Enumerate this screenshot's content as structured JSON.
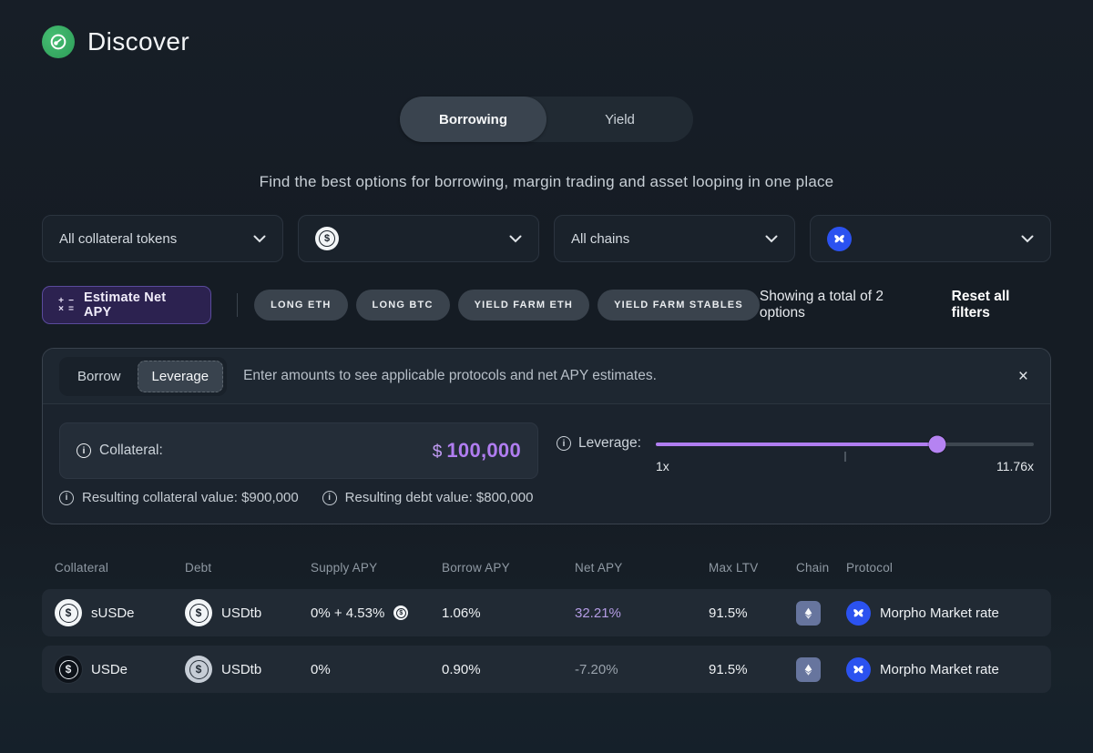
{
  "header": {
    "title": "Discover"
  },
  "tabs": {
    "borrowing": "Borrowing",
    "yield": "Yield"
  },
  "subtitle": "Find the best options for borrowing, margin trading and asset looping in one place",
  "filters": {
    "collateral_label": "All collateral tokens",
    "debt_selected_icon": "dollar-coin",
    "chains_label": "All chains",
    "protocol_selected_icon": "morpho-butterfly"
  },
  "toolbar": {
    "estimate_label": "Estimate Net APY",
    "chips": [
      "LONG ETH",
      "LONG BTC",
      "YIELD FARM ETH",
      "YIELD FARM STABLES"
    ],
    "summary": "Showing a total of 2 options",
    "reset_label": "Reset all filters"
  },
  "calculator": {
    "mode_borrow": "Borrow",
    "mode_leverage": "Leverage",
    "active_mode": "Leverage",
    "hint": "Enter amounts to see applicable protocols and net APY estimates.",
    "collateral_label": "Collateral:",
    "collateral_currency": "$",
    "collateral_value": "100,000",
    "leverage_label": "Leverage:",
    "slider": {
      "min_label": "1x",
      "max_label": "11.76x",
      "fill_percent": 74.4
    },
    "resulting_collateral": "Resulting collateral value: $900,000",
    "resulting_debt": "Resulting debt value: $800,000"
  },
  "table": {
    "columns": [
      "Collateral",
      "Debt",
      "Supply APY",
      "Borrow APY",
      "Net APY",
      "Max LTV",
      "Chain",
      "Protocol"
    ],
    "rows": [
      {
        "collateral": "sUSDe",
        "debt": "USDtb",
        "supply_apy": "0% + 4.53%",
        "borrow_apy": "1.06%",
        "net_apy": "32.21%",
        "max_ltv": "91.5%",
        "chain": "Ethereum",
        "protocol": "Morpho Market rate"
      },
      {
        "collateral": "USDe",
        "debt": "USDtb",
        "supply_apy": "0%",
        "borrow_apy": "0.90%",
        "net_apy": "-7.20%",
        "max_ltv": "91.5%",
        "chain": "Ethereum",
        "protocol": "Morpho Market rate"
      }
    ]
  },
  "icons": {
    "dollar": "$",
    "close": "×",
    "info": "i",
    "calc": [
      "+",
      "−",
      "×",
      "="
    ]
  },
  "colors": {
    "accent_purple": "#b583f2",
    "morpho_blue": "#2b52f0",
    "logo_green": "#35a763",
    "eth_chain_bg": "#67759e"
  }
}
